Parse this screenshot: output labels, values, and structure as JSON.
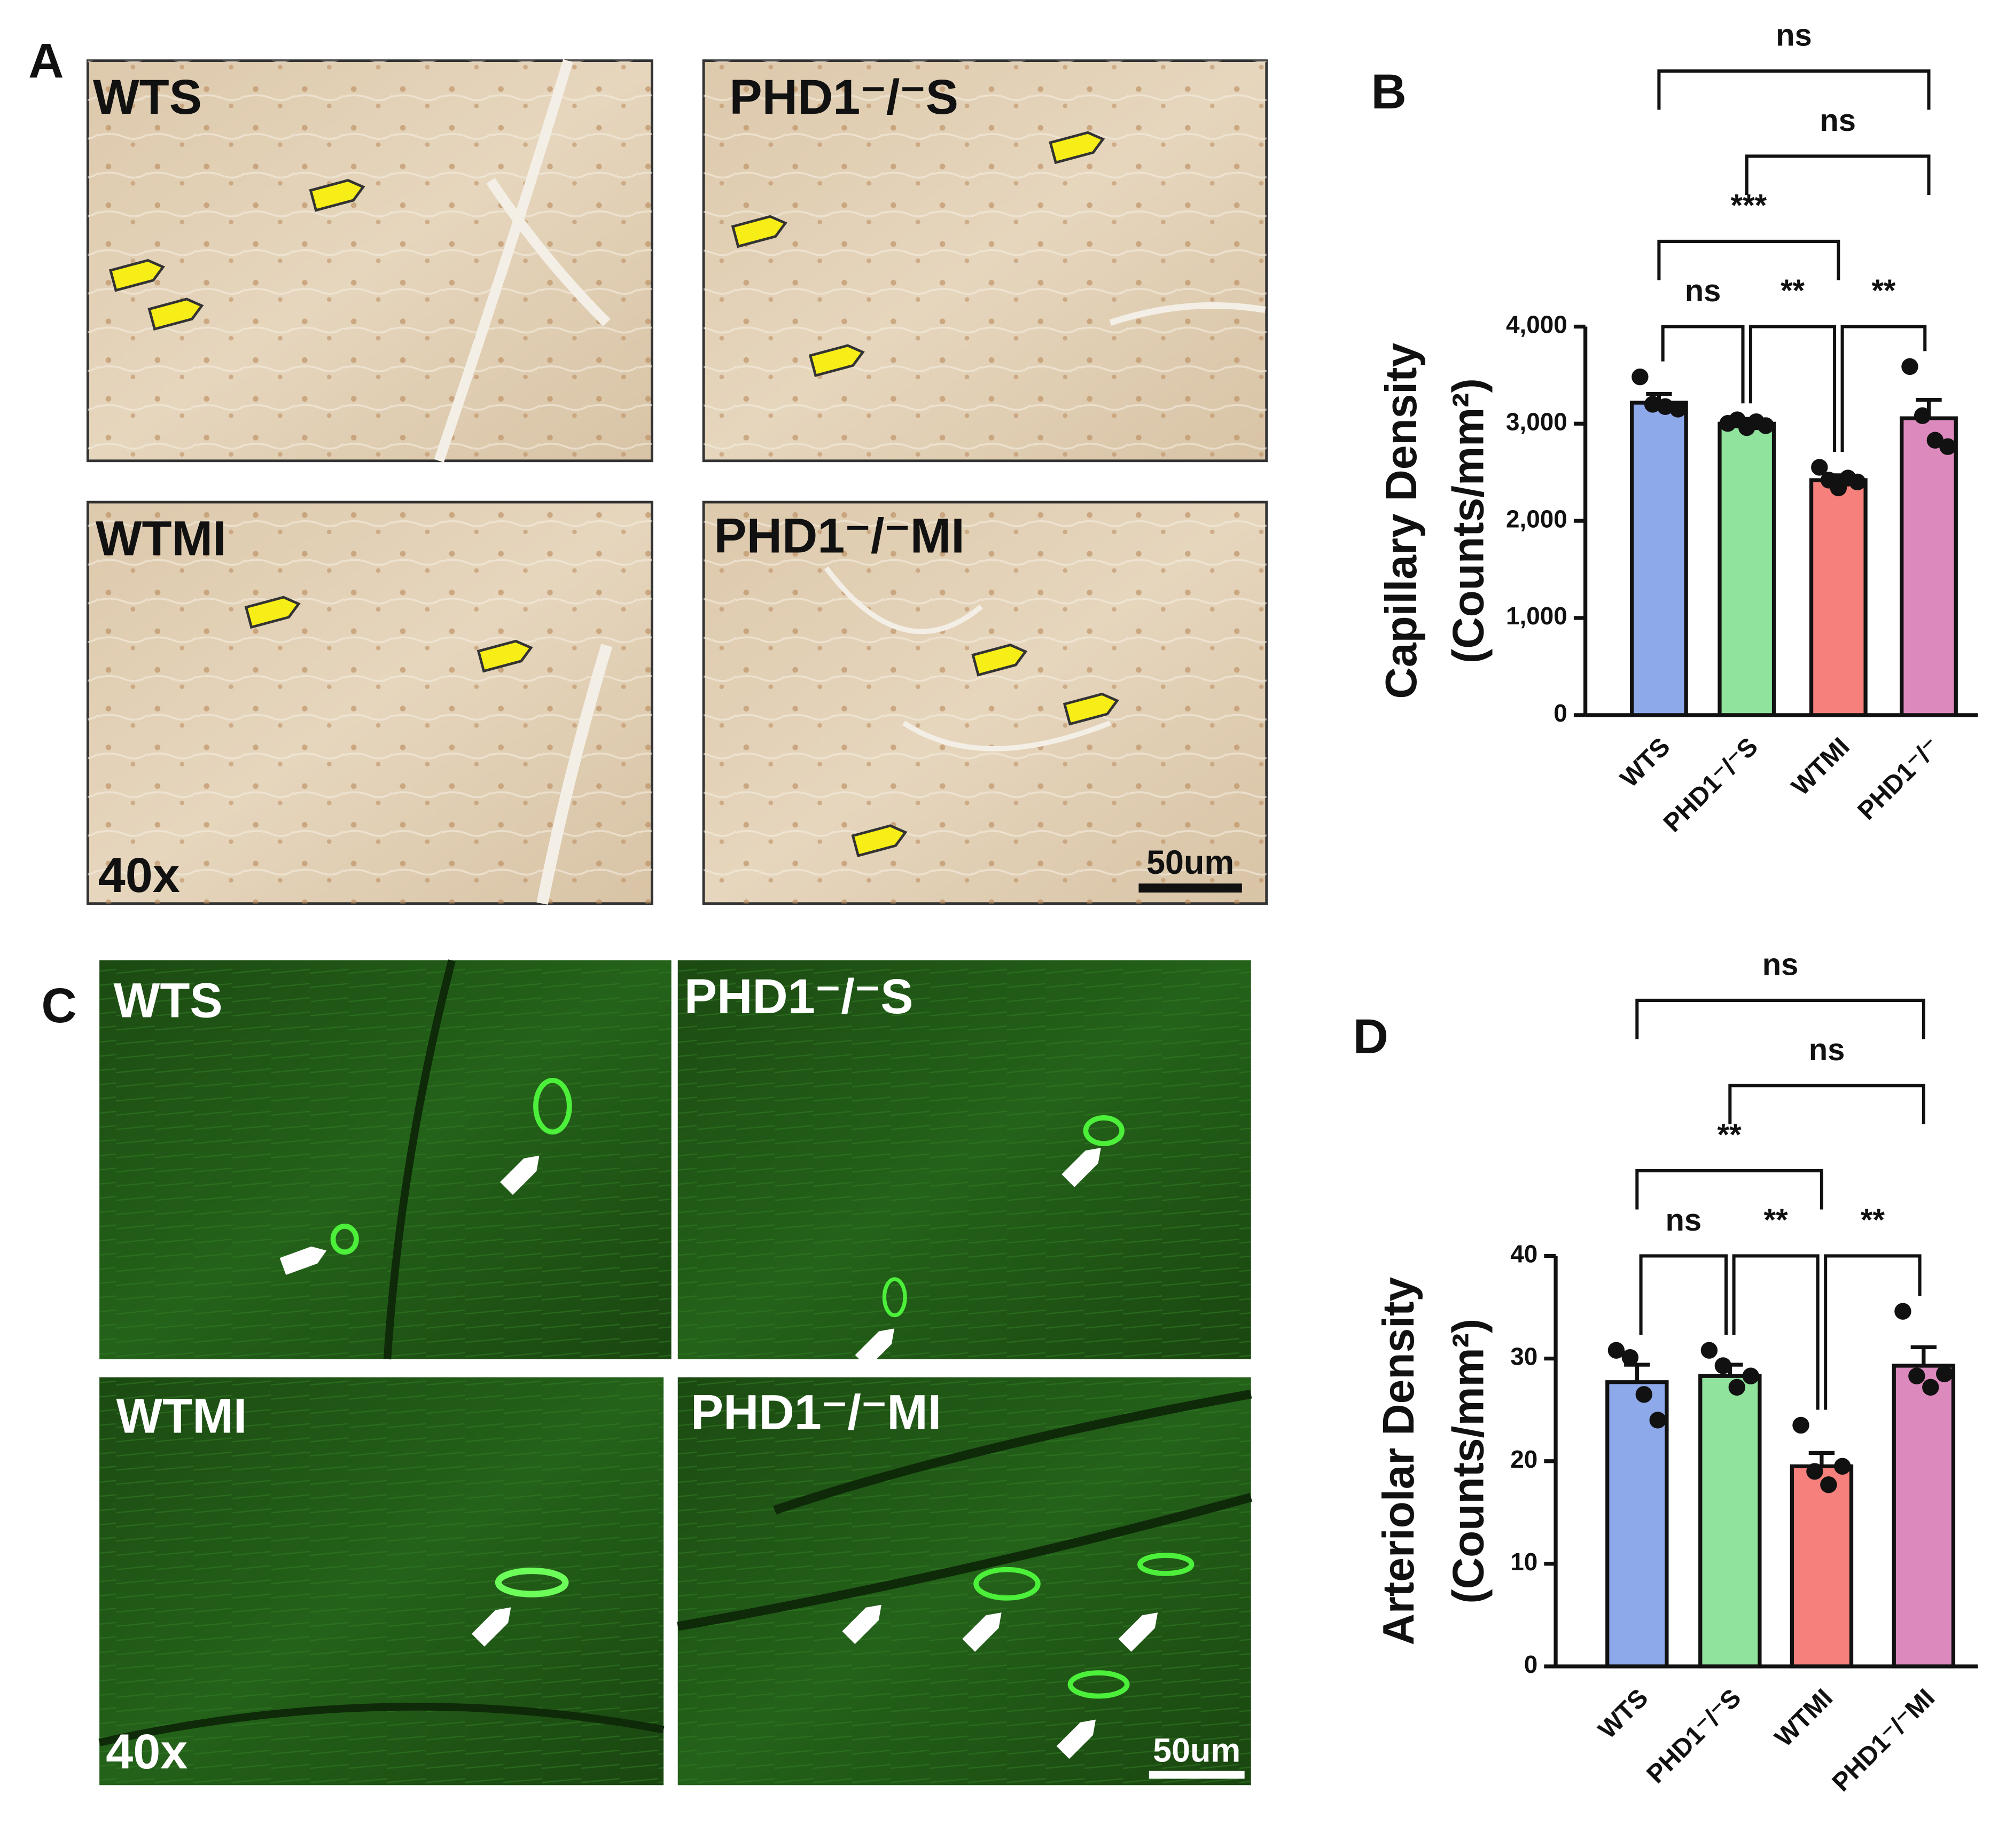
{
  "panels": {
    "A": {
      "label": "A",
      "captions": [
        "WTS",
        "PHD1⁻/⁻S",
        "WTMI",
        "PHD1⁻/⁻MI"
      ],
      "magnification": "40x",
      "scale_bar": "50um"
    },
    "C": {
      "label": "C",
      "captions": [
        "WTS",
        "PHD1⁻/⁻S",
        "WTMI",
        "PHD1⁻/⁻MI"
      ],
      "magnification": "40x",
      "scale_bar": "50um"
    }
  },
  "chart_data": [
    {
      "type": "bar",
      "panel": "B",
      "ylabel": [
        "Capillary Density",
        "(Counts/mm²)"
      ],
      "categories": [
        "WTS",
        "PHD1⁻/⁻S",
        "WTMI",
        "PHD1⁻/⁻"
      ],
      "values": [
        3216,
        3000,
        2419,
        3056
      ],
      "errors": [
        90,
        50,
        50,
        190
      ],
      "points": [
        [
          3482,
          3200,
          3176,
          3150
        ],
        [
          3003,
          3040,
          2960,
          3020,
          2980
        ],
        [
          2551,
          2419,
          2339,
          2440,
          2400
        ],
        [
          3588,
          3083,
          2830,
          2764
        ]
      ],
      "colors": [
        "#8ea9ea",
        "#8fe39c",
        "#f6807b",
        "#dc8abd"
      ],
      "ylim": [
        0,
        4000
      ],
      "yticks": [
        {
          "value": 0,
          "label": "0"
        },
        {
          "value": 1000,
          "label": "1,000"
        },
        {
          "value": 2000,
          "label": "2,000"
        },
        {
          "value": 3000,
          "label": "3,000"
        },
        {
          "value": 4000,
          "label": "4,000"
        }
      ],
      "comparisons": [
        {
          "from": 0,
          "to": 1,
          "label": "ns"
        },
        {
          "from": 1,
          "to": 2,
          "label": "**"
        },
        {
          "from": 2,
          "to": 3,
          "label": "**"
        },
        {
          "from": 0,
          "to": 2,
          "label": "***"
        },
        {
          "from": 1,
          "to": 3,
          "label": "ns"
        },
        {
          "from": 0,
          "to": 3,
          "label": "ns"
        }
      ]
    },
    {
      "type": "bar",
      "panel": "D",
      "ylabel": [
        "Arteriolar Density",
        "(Counts/mm²)"
      ],
      "categories": [
        "WTS",
        "PHD1⁻/⁻S",
        "WTMI",
        "PHD1⁻/⁻MI"
      ],
      "values": [
        27.7,
        28.3,
        19.5,
        29.3
      ],
      "errors": [
        1.7,
        1.1,
        1.3,
        1.8
      ],
      "points": [
        [
          30.8,
          30.1,
          26.5,
          24
        ],
        [
          30.8,
          29.3,
          27.2,
          28.3
        ],
        [
          23.5,
          19,
          17.7,
          19.5
        ],
        [
          34.6,
          28.3,
          27.2,
          28.5
        ]
      ],
      "colors": [
        "#8ea9ea",
        "#8fe39c",
        "#f6807b",
        "#dc8abd"
      ],
      "ylim": [
        0,
        40
      ],
      "yticks": [
        0,
        10,
        20,
        30,
        40
      ],
      "comparisons": [
        {
          "from": 0,
          "to": 1,
          "label": "ns"
        },
        {
          "from": 1,
          "to": 2,
          "label": "**"
        },
        {
          "from": 2,
          "to": 3,
          "label": "**"
        },
        {
          "from": 0,
          "to": 2,
          "label": "**"
        },
        {
          "from": 1,
          "to": 3,
          "label": "ns"
        },
        {
          "from": 0,
          "to": 3,
          "label": "ns"
        }
      ]
    }
  ]
}
